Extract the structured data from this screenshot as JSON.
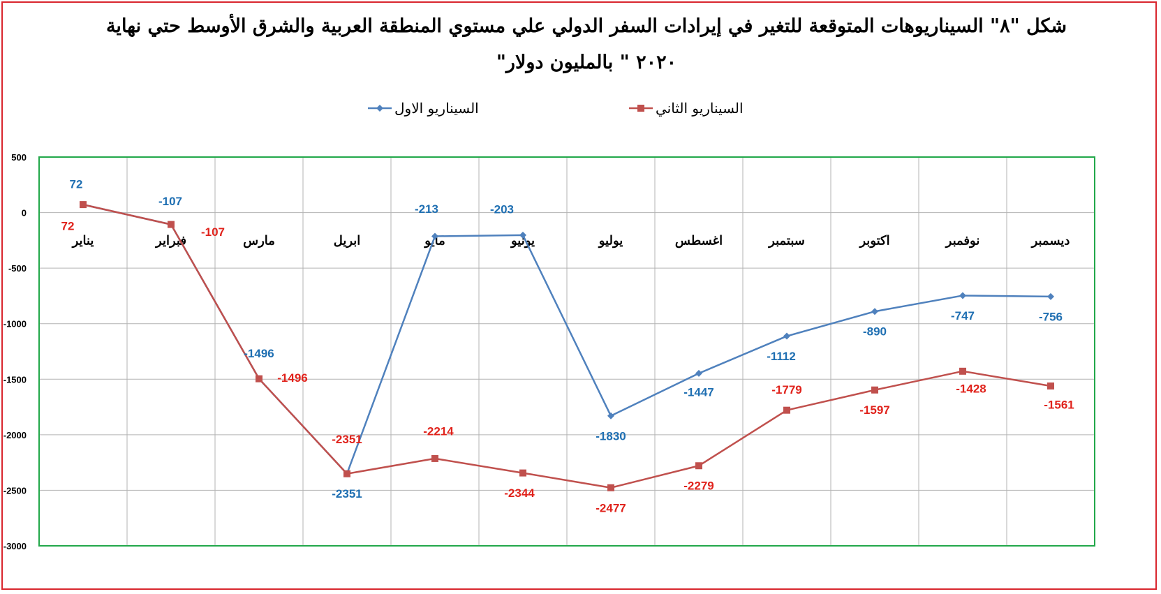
{
  "chart_data": {
    "type": "line",
    "title_lines": [
      "شكل \"٨\" السيناريوهات المتوقعة للتغير في إيرادات السفر الدولي علي مستوي المنطقة العربية والشرق الأوسط حتي نهاية",
      "٢٠٢٠ \" بالمليون دولار\""
    ],
    "categories": [
      "يناير",
      "فبراير",
      "مارس",
      "ابريل",
      "مايو",
      "يونيو",
      "يوليو",
      "اغسطس",
      "سبتمبر",
      "اكتوبر",
      "نوفمبر",
      "ديسمبر"
    ],
    "series": [
      {
        "name": "السيناريو الاول",
        "color": "#4f81bd",
        "label_color": "#1f6fb2",
        "marker": "diamond",
        "values": [
          72,
          -107,
          -1496,
          -2351,
          -213,
          -203,
          -1830,
          -1447,
          -1112,
          -890,
          -747,
          -756
        ],
        "labels": [
          "72",
          "-107",
          "-1496",
          "-2351",
          "-213",
          "-203",
          "-1830",
          "-1447",
          "-1112",
          "-890",
          "-747",
          "-756"
        ]
      },
      {
        "name": "السيناريو الثاني",
        "color": "#c0504d",
        "label_color": "#e0221b",
        "marker": "square",
        "values": [
          72,
          -107,
          -1496,
          -2351,
          -2214,
          -2344,
          -2477,
          -2279,
          -1779,
          -1597,
          -1428,
          -1561
        ],
        "labels": [
          "72",
          "-107",
          "-1496",
          "-2351",
          "-2214",
          "-2344",
          "-2477",
          "-2279",
          "-1779",
          "-1597",
          "-1428",
          "-1561"
        ]
      }
    ],
    "ylim": [
      -3000,
      500
    ],
    "yticks": [
      500,
      0,
      -500,
      -1000,
      -1500,
      -2000,
      -2500,
      -3000
    ],
    "grid": true,
    "legend_position": "top",
    "plot_border_color": "#22a84a"
  }
}
